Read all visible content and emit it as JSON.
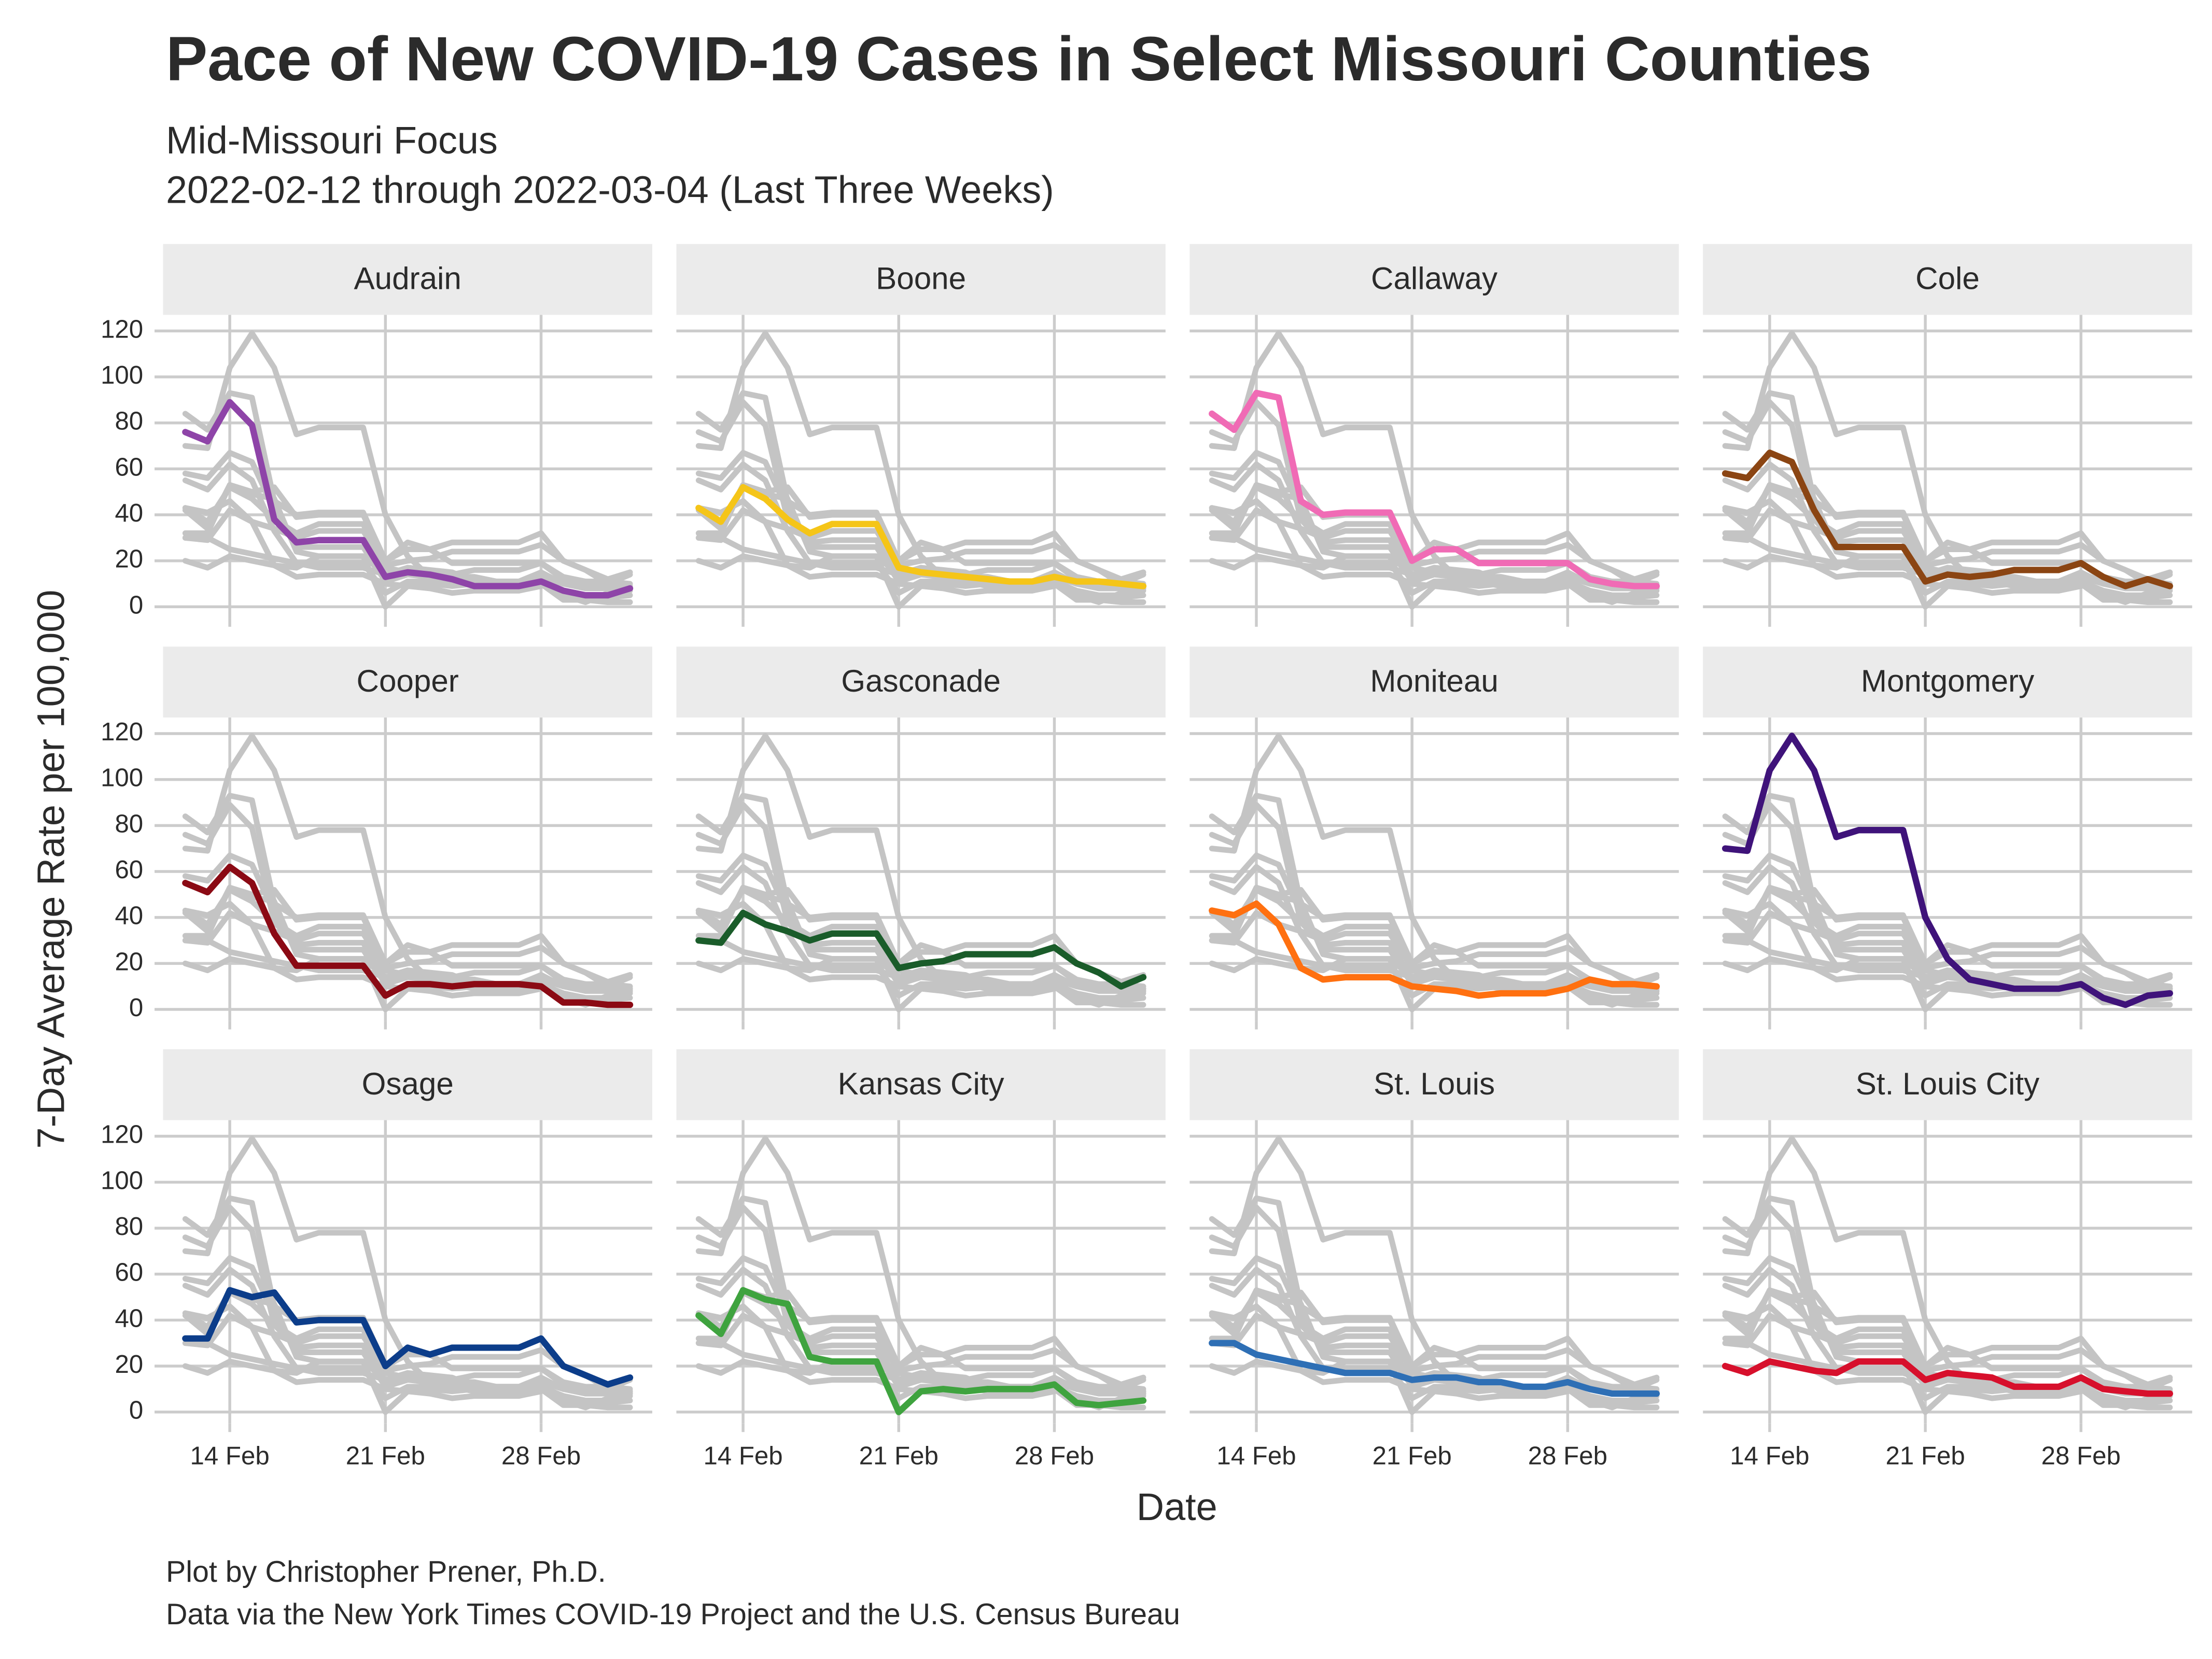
{
  "chart_data": {
    "type": "line",
    "title": "Pace of New COVID-19 Cases in Select Missouri Counties",
    "subtitle": [
      "Mid-Missouri Focus",
      "2022-02-12 through 2022-03-04 (Last Three Weeks)"
    ],
    "x_label": "Date",
    "y_label": "7-Day Average Rate per 100,000",
    "caption": [
      "Plot by Christopher Prener, Ph.D.",
      "Data via the New York Times COVID-19 Project and the U.S. Census Bureau"
    ],
    "x": [
      "2022-02-12",
      "2022-02-13",
      "2022-02-14",
      "2022-02-15",
      "2022-02-16",
      "2022-02-17",
      "2022-02-18",
      "2022-02-19",
      "2022-02-20",
      "2022-02-21",
      "2022-02-22",
      "2022-02-23",
      "2022-02-24",
      "2022-02-25",
      "2022-02-26",
      "2022-02-27",
      "2022-02-28",
      "2022-03-01",
      "2022-03-02",
      "2022-03-03",
      "2022-03-04"
    ],
    "xlim": [
      "2022-02-11",
      "2022-03-05"
    ],
    "xticks": [
      {
        "value": "2022-02-14",
        "label": "14 Feb"
      },
      {
        "value": "2022-02-21",
        "label": "21 Feb"
      },
      {
        "value": "2022-02-28",
        "label": "28 Feb"
      }
    ],
    "ylim": [
      -5,
      127
    ],
    "yticks": [
      0,
      20,
      40,
      60,
      80,
      100,
      120
    ],
    "grid": true,
    "context_color": "#c4c4c4",
    "series": [
      {
        "name": "Audrain",
        "color": "#8e44a8",
        "values": [
          76,
          72,
          89,
          79,
          38,
          28,
          29,
          29,
          29,
          13,
          15,
          14,
          12,
          9,
          9,
          9,
          11,
          7,
          5,
          5,
          8
        ]
      },
      {
        "name": "Boone",
        "color": "#f5c518",
        "values": [
          43,
          37,
          52,
          47,
          38,
          32,
          36,
          36,
          36,
          17,
          15,
          14,
          13,
          12,
          11,
          11,
          13,
          11,
          11,
          10,
          9
        ]
      },
      {
        "name": "Callaway",
        "color": "#f06bb5",
        "values": [
          84,
          77,
          93,
          91,
          46,
          40,
          41,
          41,
          41,
          20,
          25,
          25,
          19,
          19,
          19,
          19,
          19,
          12,
          10,
          9,
          9
        ]
      },
      {
        "name": "Cole",
        "color": "#8b4513",
        "values": [
          58,
          56,
          67,
          63,
          42,
          26,
          26,
          26,
          26,
          11,
          14,
          13,
          14,
          16,
          16,
          16,
          19,
          13,
          9,
          12,
          9
        ]
      },
      {
        "name": "Cooper",
        "color": "#8b0a14",
        "values": [
          55,
          51,
          62,
          55,
          33,
          19,
          19,
          19,
          19,
          6,
          11,
          11,
          10,
          11,
          11,
          11,
          10,
          3,
          3,
          2,
          2
        ]
      },
      {
        "name": "Gasconade",
        "color": "#1a5c2a",
        "values": [
          30,
          29,
          42,
          37,
          34,
          30,
          33,
          33,
          33,
          18,
          20,
          21,
          24,
          24,
          24,
          24,
          27,
          20,
          16,
          10,
          14
        ]
      },
      {
        "name": "Moniteau",
        "color": "#ff7010",
        "values": [
          43,
          41,
          46,
          37,
          18,
          13,
          14,
          14,
          14,
          10,
          9,
          8,
          6,
          7,
          7,
          7,
          9,
          13,
          11,
          11,
          10
        ]
      },
      {
        "name": "Montgomery",
        "color": "#3f137a",
        "values": [
          70,
          69,
          104,
          119,
          104,
          75,
          78,
          78,
          78,
          40,
          22,
          13,
          11,
          9,
          9,
          9,
          11,
          5,
          2,
          6,
          7
        ]
      },
      {
        "name": "Osage",
        "color": "#0c3d8a",
        "values": [
          32,
          32,
          53,
          50,
          52,
          39,
          40,
          40,
          40,
          20,
          28,
          25,
          28,
          28,
          28,
          28,
          32,
          20,
          16,
          12,
          15
        ]
      },
      {
        "name": "Kansas City",
        "color": "#3fa33f",
        "values": [
          42,
          34,
          53,
          49,
          47,
          24,
          22,
          22,
          22,
          0,
          9,
          10,
          9,
          10,
          10,
          10,
          12,
          4,
          3,
          4,
          5
        ]
      },
      {
        "name": "St. Louis",
        "color": "#2e6fb5",
        "values": [
          30,
          30,
          25,
          23,
          21,
          19,
          17,
          17,
          17,
          14,
          15,
          15,
          13,
          13,
          11,
          11,
          13,
          10,
          8,
          8,
          8
        ]
      },
      {
        "name": "St. Louis City",
        "color": "#d7102c",
        "values": [
          20,
          17,
          22,
          20,
          18,
          17,
          22,
          22,
          22,
          14,
          17,
          16,
          15,
          11,
          11,
          11,
          15,
          10,
          9,
          8,
          8
        ]
      }
    ]
  }
}
